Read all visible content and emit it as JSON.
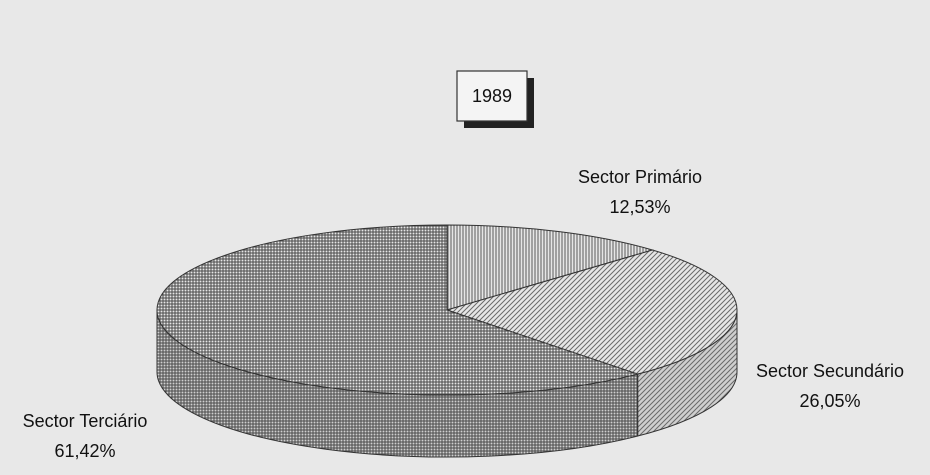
{
  "chart_data": {
    "type": "pie3d",
    "title": "1989",
    "categories": [
      "Sector Primário",
      "Sector Secundário",
      "Sector Terciário"
    ],
    "values": [
      12.53,
      26.05,
      61.42
    ],
    "value_labels": [
      "12,53%",
      "26,05%",
      "61,42%"
    ],
    "colors": [
      "#5a5a5a",
      "#6a6a6a",
      "#4a4a4a"
    ]
  }
}
